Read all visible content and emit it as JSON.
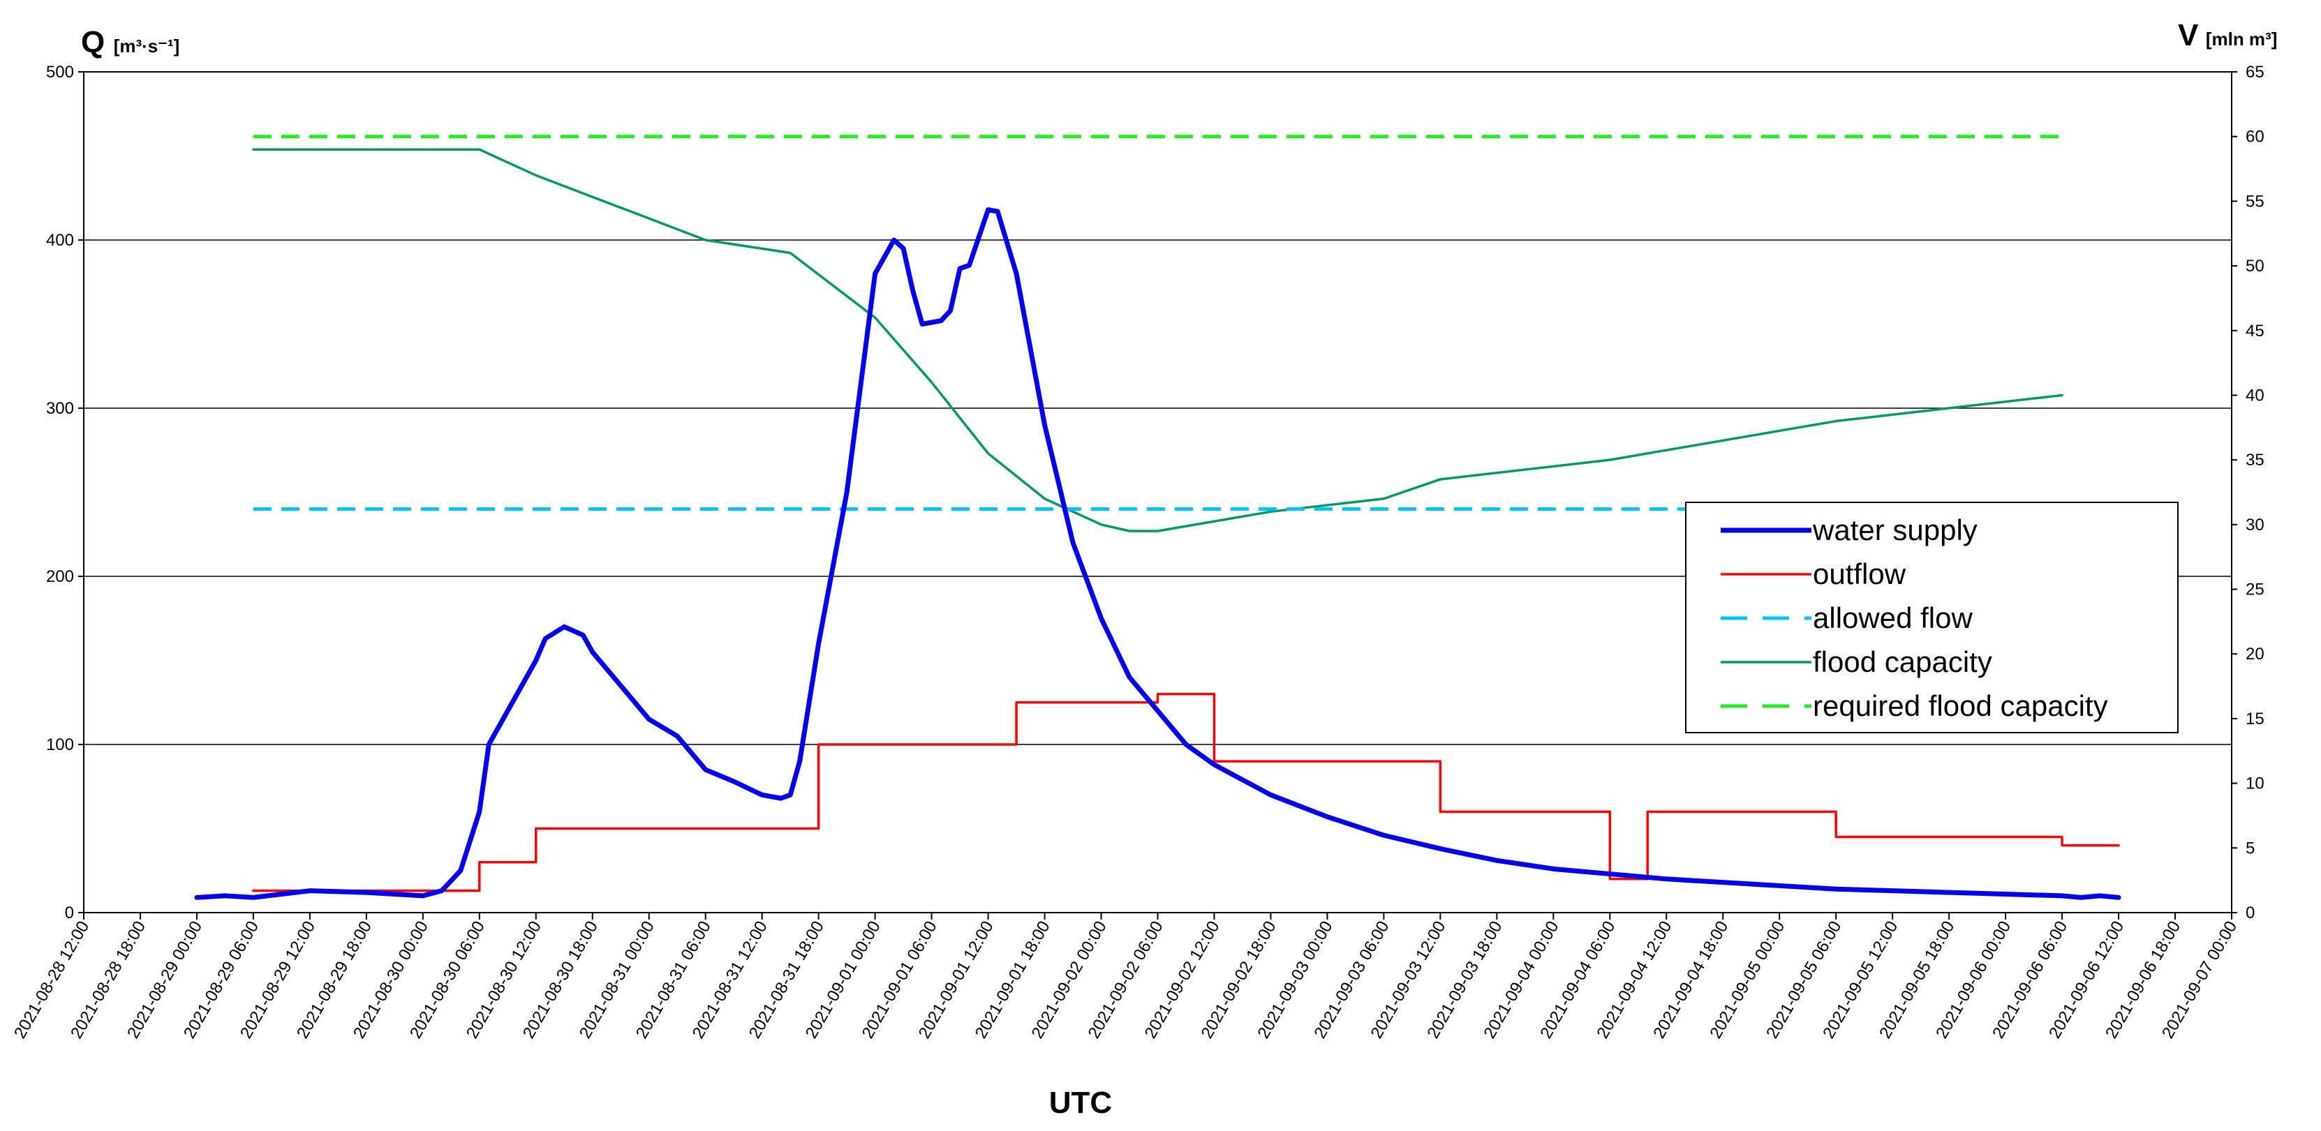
{
  "chart_data": {
    "type": "line",
    "y_left": {
      "label_main": "Q",
      "label_unit": "[m³·s⁻¹]",
      "range": [
        0,
        500
      ],
      "ticks": [
        0,
        100,
        200,
        300,
        400,
        500
      ]
    },
    "y_right": {
      "label_main": "V",
      "label_unit": "[mln m³]",
      "range": [
        0,
        65
      ],
      "ticks": [
        0,
        5,
        10,
        15,
        20,
        25,
        30,
        35,
        40,
        45,
        50,
        55,
        60,
        65
      ]
    },
    "x_axis": {
      "label": "UTC",
      "range": [
        "2021-08-28 12:00",
        "2021-09-07 00:00"
      ],
      "ticks": [
        "2021-08-28 12:00",
        "2021-08-28 18:00",
        "2021-08-29 00:00",
        "2021-08-29 06:00",
        "2021-08-29 12:00",
        "2021-08-29 18:00",
        "2021-08-30 00:00",
        "2021-08-30 06:00",
        "2021-08-30 12:00",
        "2021-08-30 18:00",
        "2021-08-31 00:00",
        "2021-08-31 06:00",
        "2021-08-31 12:00",
        "2021-08-31 18:00",
        "2021-09-01 00:00",
        "2021-09-01 06:00",
        "2021-09-01 12:00",
        "2021-09-01 18:00",
        "2021-09-02 00:00",
        "2021-09-02 06:00",
        "2021-09-02 12:00",
        "2021-09-02 18:00",
        "2021-09-03 00:00",
        "2021-09-03 06:00",
        "2021-09-03 12:00",
        "2021-09-03 18:00",
        "2021-09-04 00:00",
        "2021-09-04 06:00",
        "2021-09-04 12:00",
        "2021-09-04 18:00",
        "2021-09-05 00:00",
        "2021-09-05 06:00",
        "2021-09-05 12:00",
        "2021-09-05 18:00",
        "2021-09-06 00:00",
        "2021-09-06 06:00",
        "2021-09-06 12:00",
        "2021-09-06 18:00",
        "2021-09-07 00:00"
      ]
    },
    "grid": "horizontal",
    "legend_position": "right",
    "series": [
      {
        "name": "water supply",
        "axis": "left",
        "color": "#0000ee",
        "style": "solid-thick",
        "points": [
          [
            "2021-08-29 00:00",
            9
          ],
          [
            "2021-08-29 03:00",
            10
          ],
          [
            "2021-08-29 06:00",
            9
          ],
          [
            "2021-08-29 09:00",
            11
          ],
          [
            "2021-08-29 12:00",
            13
          ],
          [
            "2021-08-29 18:00",
            12
          ],
          [
            "2021-08-30 00:00",
            10
          ],
          [
            "2021-08-30 02:00",
            13
          ],
          [
            "2021-08-30 04:00",
            25
          ],
          [
            "2021-08-30 06:00",
            60
          ],
          [
            "2021-08-30 07:00",
            100
          ],
          [
            "2021-08-30 09:00",
            120
          ],
          [
            "2021-08-30 12:00",
            150
          ],
          [
            "2021-08-30 13:00",
            163
          ],
          [
            "2021-08-30 15:00",
            170
          ],
          [
            "2021-08-30 17:00",
            165
          ],
          [
            "2021-08-30 18:00",
            155
          ],
          [
            "2021-08-30 21:00",
            135
          ],
          [
            "2021-08-31 00:00",
            115
          ],
          [
            "2021-08-31 03:00",
            105
          ],
          [
            "2021-08-31 06:00",
            85
          ],
          [
            "2021-08-31 09:00",
            78
          ],
          [
            "2021-08-31 12:00",
            70
          ],
          [
            "2021-08-31 14:00",
            68
          ],
          [
            "2021-08-31 15:00",
            70
          ],
          [
            "2021-08-31 16:00",
            90
          ],
          [
            "2021-08-31 18:00",
            160
          ],
          [
            "2021-08-31 21:00",
            250
          ],
          [
            "2021-09-01 00:00",
            380
          ],
          [
            "2021-09-01 02:00",
            400
          ],
          [
            "2021-09-01 03:00",
            395
          ],
          [
            "2021-09-01 04:00",
            370
          ],
          [
            "2021-09-01 05:00",
            350
          ],
          [
            "2021-09-01 07:00",
            352
          ],
          [
            "2021-09-01 08:00",
            358
          ],
          [
            "2021-09-01 09:00",
            383
          ],
          [
            "2021-09-01 10:00",
            385
          ],
          [
            "2021-09-01 12:00",
            418
          ],
          [
            "2021-09-01 13:00",
            417
          ],
          [
            "2021-09-01 15:00",
            380
          ],
          [
            "2021-09-01 18:00",
            290
          ],
          [
            "2021-09-01 21:00",
            220
          ],
          [
            "2021-09-02 00:00",
            175
          ],
          [
            "2021-09-02 03:00",
            140
          ],
          [
            "2021-09-02 06:00",
            120
          ],
          [
            "2021-09-02 09:00",
            100
          ],
          [
            "2021-09-02 12:00",
            88
          ],
          [
            "2021-09-02 18:00",
            70
          ],
          [
            "2021-09-03 00:00",
            57
          ],
          [
            "2021-09-03 06:00",
            46
          ],
          [
            "2021-09-03 12:00",
            38
          ],
          [
            "2021-09-03 18:00",
            31
          ],
          [
            "2021-09-04 00:00",
            26
          ],
          [
            "2021-09-04 06:00",
            23
          ],
          [
            "2021-09-04 12:00",
            20
          ],
          [
            "2021-09-04 18:00",
            18
          ],
          [
            "2021-09-05 00:00",
            16
          ],
          [
            "2021-09-05 06:00",
            14
          ],
          [
            "2021-09-05 12:00",
            13
          ],
          [
            "2021-09-05 18:00",
            12
          ],
          [
            "2021-09-06 00:00",
            11
          ],
          [
            "2021-09-06 06:00",
            10
          ],
          [
            "2021-09-06 08:00",
            9
          ],
          [
            "2021-09-06 10:00",
            10
          ],
          [
            "2021-09-06 12:00",
            9
          ]
        ]
      },
      {
        "name": "outflow",
        "axis": "left",
        "color": "#ff0000",
        "style": "step",
        "points": [
          [
            "2021-08-29 06:00",
            13
          ],
          [
            "2021-08-30 06:00",
            30
          ],
          [
            "2021-08-30 12:00",
            50
          ],
          [
            "2021-08-31 18:00",
            100
          ],
          [
            "2021-09-01 15:00",
            125
          ],
          [
            "2021-09-02 06:00",
            130
          ],
          [
            "2021-09-02 12:00",
            90
          ],
          [
            "2021-09-03 12:00",
            60
          ],
          [
            "2021-09-04 06:00",
            20
          ],
          [
            "2021-09-04 10:00",
            60
          ],
          [
            "2021-09-05 06:00",
            45
          ],
          [
            "2021-09-06 06:00",
            40
          ],
          [
            "2021-09-06 12:00",
            40
          ]
        ]
      },
      {
        "name": "allowed flow",
        "axis": "left",
        "color": "#00bfff",
        "style": "dashed",
        "points": [
          [
            "2021-08-29 06:00",
            240
          ],
          [
            "2021-09-06 06:00",
            240
          ]
        ]
      },
      {
        "name": "flood capacity",
        "axis": "right",
        "color": "#009966",
        "style": "solid",
        "points": [
          [
            "2021-08-29 06:00",
            59
          ],
          [
            "2021-08-30 06:00",
            59
          ],
          [
            "2021-08-30 12:00",
            57
          ],
          [
            "2021-08-31 06:00",
            52
          ],
          [
            "2021-08-31 15:00",
            51
          ],
          [
            "2021-09-01 00:00",
            46
          ],
          [
            "2021-09-01 06:00",
            41
          ],
          [
            "2021-09-01 12:00",
            35.5
          ],
          [
            "2021-09-01 18:00",
            32
          ],
          [
            "2021-09-02 00:00",
            30
          ],
          [
            "2021-09-02 03:00",
            29.5
          ],
          [
            "2021-09-02 06:00",
            29.5
          ],
          [
            "2021-09-02 18:00",
            31
          ],
          [
            "2021-09-03 06:00",
            32
          ],
          [
            "2021-09-03 12:00",
            33.5
          ],
          [
            "2021-09-04 06:00",
            35
          ],
          [
            "2021-09-05 06:00",
            38
          ],
          [
            "2021-09-06 06:00",
            40
          ]
        ]
      },
      {
        "name": "required flood capacity",
        "axis": "right",
        "color": "#22ee22",
        "style": "dashed",
        "points": [
          [
            "2021-08-29 06:00",
            60
          ],
          [
            "2021-09-06 06:00",
            60
          ]
        ]
      }
    ]
  }
}
